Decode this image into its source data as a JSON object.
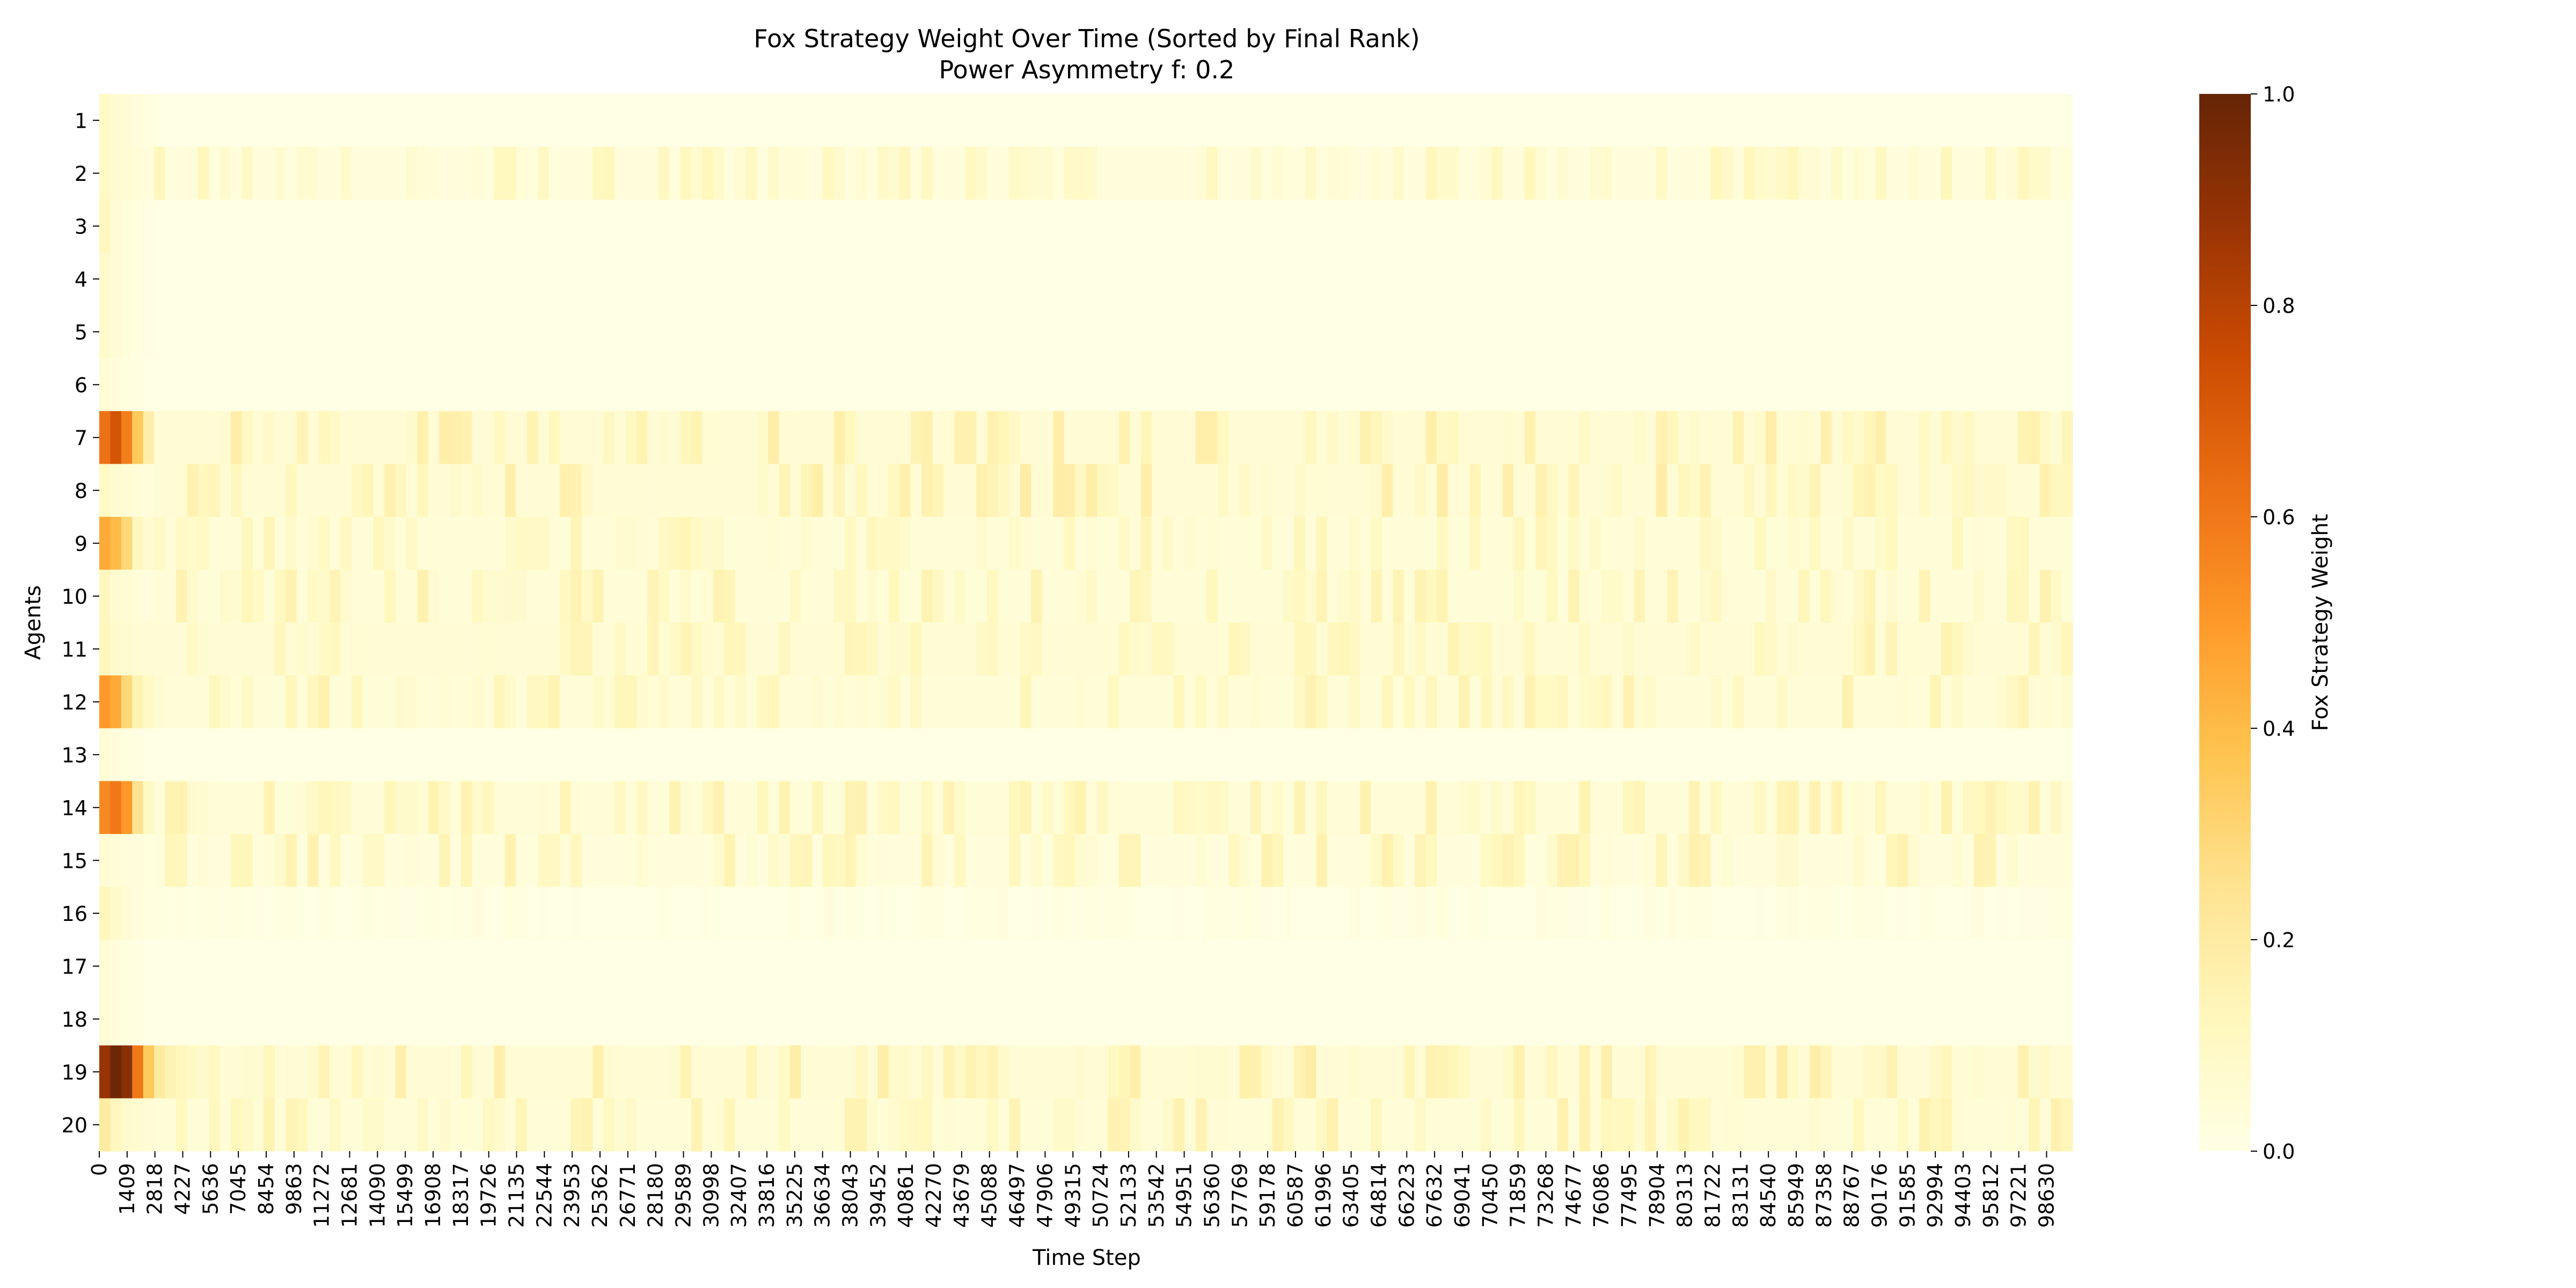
{
  "chart_data": {
    "type": "heatmap",
    "title": "Fox Strategy Weight Over Time (Sorted by Final Rank)",
    "subtitle": "Power Asymmetry f: 0.2",
    "xlabel": "Time Step",
    "ylabel": "Agents",
    "colorbar_label": "Fox Strategy Weight",
    "colormap": "YlOrBr",
    "colormap_stops": [
      "#ffffe5",
      "#fff7bc",
      "#fee391",
      "#fec44f",
      "#fe9929",
      "#ec7014",
      "#cc4c02",
      "#993404",
      "#662506"
    ],
    "value_range": [
      0.0,
      1.0
    ],
    "colorbar_ticks": [
      "0.0",
      "0.2",
      "0.4",
      "0.6",
      "0.8",
      "1.0"
    ],
    "x_range": [
      0,
      99948
    ],
    "x_tick_labels": [
      "0",
      "1409",
      "2818",
      "4227",
      "5636",
      "7045",
      "8454",
      "9863",
      "11272",
      "12681",
      "14090",
      "15499",
      "16908",
      "18317",
      "19726",
      "21135",
      "22544",
      "23953",
      "25362",
      "26771",
      "28180",
      "29589",
      "30998",
      "32407",
      "33816",
      "35225",
      "36634",
      "38043",
      "39452",
      "40861",
      "42270",
      "43679",
      "45088",
      "46497",
      "47906",
      "49315",
      "50724",
      "52133",
      "53542",
      "54951",
      "56360",
      "57769",
      "59178",
      "60587",
      "61996",
      "63405",
      "64814",
      "66223",
      "67632",
      "69041",
      "70450",
      "71859",
      "73268",
      "74677",
      "76086",
      "77495",
      "78904",
      "80313",
      "81722",
      "83131",
      "84540",
      "85949",
      "87358",
      "88767",
      "90176",
      "91585",
      "92994",
      "94403",
      "95812",
      "97221",
      "98630"
    ],
    "y_tick_labels": [
      "1",
      "2",
      "3",
      "4",
      "5",
      "6",
      "7",
      "8",
      "9",
      "10",
      "11",
      "12",
      "13",
      "14",
      "15",
      "16",
      "17",
      "18",
      "19",
      "20"
    ],
    "n_time_bins": 180,
    "agents": [
      {
        "agent": "1",
        "initial": [
          0.1,
          0.06,
          0.05,
          0.03,
          0.02
        ],
        "background": 0.0,
        "noise": 0.0
      },
      {
        "agent": "2",
        "initial": [
          0.1,
          0.06,
          0.05,
          0.04,
          0.03
        ],
        "background": 0.03,
        "noise": 0.1
      },
      {
        "agent": "3",
        "initial": [
          0.12,
          0.05,
          0.03,
          0.02,
          0.01
        ],
        "background": 0.0,
        "noise": 0.0
      },
      {
        "agent": "4",
        "initial": [
          0.08,
          0.05,
          0.03,
          0.02,
          0.01
        ],
        "background": 0.0,
        "noise": 0.0
      },
      {
        "agent": "5",
        "initial": [
          0.08,
          0.05,
          0.03,
          0.02,
          0.01
        ],
        "background": 0.0,
        "noise": 0.0
      },
      {
        "agent": "6",
        "initial": [
          0.05,
          0.03,
          0.02,
          0.01,
          0.0
        ],
        "background": 0.0,
        "noise": 0.0
      },
      {
        "agent": "7",
        "initial": [
          0.62,
          0.72,
          0.58,
          0.35,
          0.18
        ],
        "background": 0.05,
        "noise": 0.14
      },
      {
        "agent": "8",
        "initial": [
          0.1,
          0.06,
          0.05,
          0.04,
          0.03
        ],
        "background": 0.05,
        "noise": 0.14
      },
      {
        "agent": "9",
        "initial": [
          0.45,
          0.4,
          0.3,
          0.12,
          0.06
        ],
        "background": 0.04,
        "noise": 0.1
      },
      {
        "agent": "10",
        "initial": [
          0.12,
          0.06,
          0.05,
          0.04,
          0.03
        ],
        "background": 0.04,
        "noise": 0.12
      },
      {
        "agent": "11",
        "initial": [
          0.12,
          0.08,
          0.06,
          0.05,
          0.05
        ],
        "background": 0.05,
        "noise": 0.1
      },
      {
        "agent": "12",
        "initial": [
          0.5,
          0.45,
          0.3,
          0.15,
          0.1
        ],
        "background": 0.04,
        "noise": 0.12
      },
      {
        "agent": "13",
        "initial": [
          0.05,
          0.03,
          0.02,
          0.01,
          0.0
        ],
        "background": 0.0,
        "noise": 0.0
      },
      {
        "agent": "14",
        "initial": [
          0.55,
          0.6,
          0.5,
          0.25,
          0.1
        ],
        "background": 0.04,
        "noise": 0.12
      },
      {
        "agent": "15",
        "initial": [
          0.05,
          0.04,
          0.03,
          0.03,
          0.02
        ],
        "background": 0.03,
        "noise": 0.14
      },
      {
        "agent": "16",
        "initial": [
          0.12,
          0.08,
          0.05,
          0.03,
          0.02
        ],
        "background": 0.005,
        "noise": 0.02
      },
      {
        "agent": "17",
        "initial": [
          0.05,
          0.03,
          0.02,
          0.01,
          0.0
        ],
        "background": 0.0,
        "noise": 0.0
      },
      {
        "agent": "18",
        "initial": [
          0.05,
          0.03,
          0.02,
          0.01,
          0.0
        ],
        "background": 0.0,
        "noise": 0.0
      },
      {
        "agent": "19",
        "initial": [
          0.88,
          0.98,
          0.92,
          0.6,
          0.35,
          0.2,
          0.15,
          0.12,
          0.1,
          0.08
        ],
        "background": 0.05,
        "noise": 0.14
      },
      {
        "agent": "20",
        "initial": [
          0.2,
          0.12,
          0.08,
          0.06,
          0.05
        ],
        "background": 0.04,
        "noise": 0.12
      }
    ]
  }
}
